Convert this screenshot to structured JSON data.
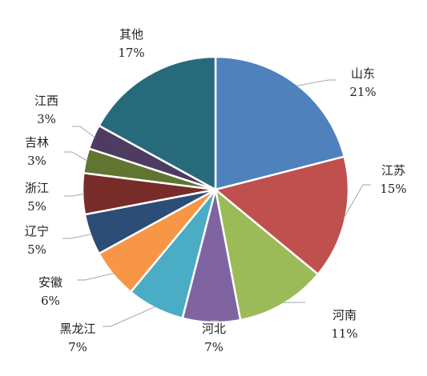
{
  "chart_data": {
    "type": "pie",
    "title": "",
    "slices": [
      {
        "label": "山东",
        "value": 21,
        "value_text": "21%",
        "color": "#4f81bd"
      },
      {
        "label": "江苏",
        "value": 15,
        "value_text": "15%",
        "color": "#c0504d"
      },
      {
        "label": "河南",
        "value": 11,
        "value_text": "11%",
        "color": "#9bbb59"
      },
      {
        "label": "河北",
        "value": 7,
        "value_text": "7%",
        "color": "#8064a2"
      },
      {
        "label": "黑龙江",
        "value": 7,
        "value_text": "7%",
        "color": "#4bacc6"
      },
      {
        "label": "安徽",
        "value": 6,
        "value_text": "6%",
        "color": "#f79646"
      },
      {
        "label": "辽宁",
        "value": 5,
        "value_text": "5%",
        "color": "#2c4d75"
      },
      {
        "label": "浙江",
        "value": 5,
        "value_text": "5%",
        "color": "#772c2a"
      },
      {
        "label": "吉林",
        "value": 3,
        "value_text": "3%",
        "color": "#5f7530"
      },
      {
        "label": "江西",
        "value": 3,
        "value_text": "3%",
        "color": "#4d3b62"
      },
      {
        "label": "其他",
        "value": 17,
        "value_text": "17%",
        "color": "#276a7c"
      }
    ],
    "start_angle": "12 o'clock",
    "direction": "clockwise",
    "legend": "none",
    "labels": "outside with leader lines"
  }
}
